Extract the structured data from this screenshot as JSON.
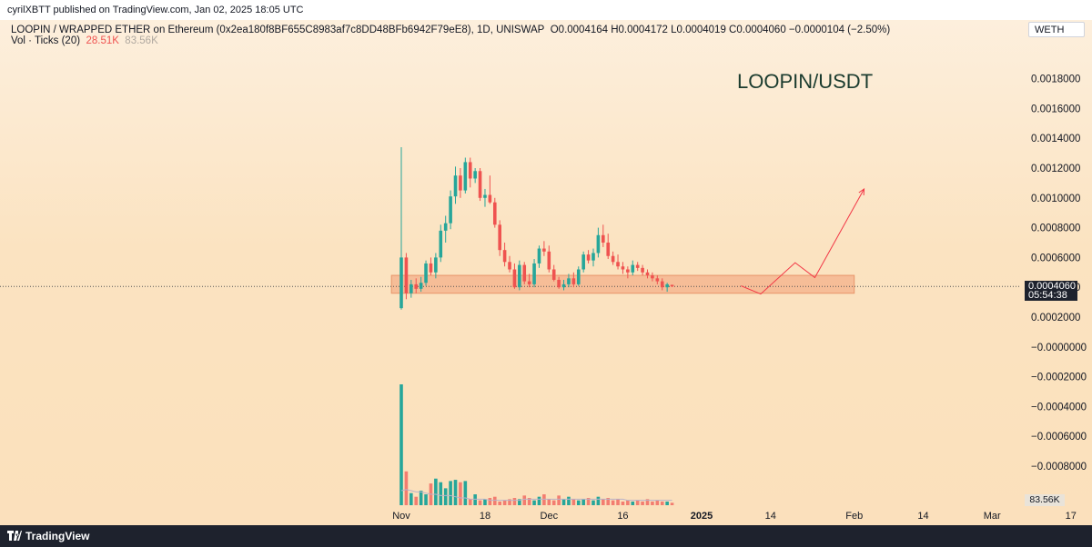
{
  "header": {
    "publisher": "cyrilXBTT published on TradingView.com, Jan 02, 2025 18:05 UTC",
    "symbol_line": "LOOPIN / WRAPPED ETHER on Ethereum (0x2ea180f8BF655C8983af7c8DD48BFb6942F79eE8), 1D, UNISWAP",
    "ohlc": "O0.0004164  H0.0004172  L0.0004019  C0.0004060  −0.0000104 (−2.50%)",
    "vol_label": "Vol · Ticks (20)",
    "vol_value": "28.51K",
    "vol_ma": "83.56K",
    "currency_box": "WETH"
  },
  "last_price": {
    "price": "0.0004060",
    "countdown": "05:54:38"
  },
  "vol_tag": "83.56K",
  "footer": {
    "brand": "TradingView"
  },
  "colors": {
    "up": "#26a69a",
    "down": "#ef5350",
    "zone": "#f4b08a",
    "arrow": "#f23645"
  },
  "chart_data": {
    "type": "candlestick",
    "title": "LOOPIN/USDT",
    "y_ticks": [
      "0.0018000",
      "0.0016000",
      "0.0014000",
      "0.0012000",
      "0.0010000",
      "0.0008000",
      "0.0006000",
      "0.0004000",
      "0.0002000",
      "−0.0000000",
      "−0.0002000",
      "−0.0004000",
      "−0.0006000",
      "−0.0008000"
    ],
    "y_tick_values": [
      0.0018,
      0.0016,
      0.0014,
      0.0012,
      0.001,
      0.0008,
      0.0006,
      0.0004,
      0.0002,
      0.0,
      -0.0002,
      -0.0004,
      -0.0006,
      -0.0008
    ],
    "ylim": [
      -0.00091,
      0.00195
    ],
    "x_labels": [
      "Nov",
      "18",
      "Dec",
      "16",
      "2025",
      "14",
      "Feb",
      "14",
      "Mar",
      "17"
    ],
    "x_label_days": [
      0,
      17,
      30,
      45,
      61,
      75,
      92,
      106,
      120,
      136
    ],
    "last_price": 0.000406,
    "support_zone": {
      "low": 0.00036,
      "high": 0.00048,
      "start_day": -2,
      "end_day": 92
    },
    "projection": [
      [
        69,
        0.00041
      ],
      [
        73,
        0.000355
      ],
      [
        80,
        0.000565
      ],
      [
        84,
        0.000465
      ],
      [
        94,
        0.00106
      ]
    ],
    "candles": [
      {
        "d": 0,
        "o": 0.00026,
        "h": 0.00134,
        "l": 0.00025,
        "c": 0.0006
      },
      {
        "d": 1,
        "o": 0.0006,
        "h": 0.00063,
        "l": 0.00032,
        "c": 0.00036
      },
      {
        "d": 2,
        "o": 0.00036,
        "h": 0.00045,
        "l": 0.00033,
        "c": 0.00042
      },
      {
        "d": 3,
        "o": 0.00042,
        "h": 0.00046,
        "l": 0.00036,
        "c": 0.00039
      },
      {
        "d": 4,
        "o": 0.00039,
        "h": 0.00047,
        "l": 0.00037,
        "c": 0.00043
      },
      {
        "d": 5,
        "o": 0.00043,
        "h": 0.00058,
        "l": 0.00041,
        "c": 0.00056
      },
      {
        "d": 6,
        "o": 0.00056,
        "h": 0.0006,
        "l": 0.00048,
        "c": 0.0005
      },
      {
        "d": 7,
        "o": 0.0005,
        "h": 0.00063,
        "l": 0.00046,
        "c": 0.0006
      },
      {
        "d": 8,
        "o": 0.0006,
        "h": 0.00082,
        "l": 0.00057,
        "c": 0.00078
      },
      {
        "d": 9,
        "o": 0.00078,
        "h": 0.00088,
        "l": 0.0007,
        "c": 0.00083
      },
      {
        "d": 10,
        "o": 0.00083,
        "h": 0.00105,
        "l": 0.00079,
        "c": 0.00101
      },
      {
        "d": 11,
        "o": 0.00101,
        "h": 0.00121,
        "l": 0.00096,
        "c": 0.00115
      },
      {
        "d": 12,
        "o": 0.00115,
        "h": 0.0012,
        "l": 0.001,
        "c": 0.00105
      },
      {
        "d": 13,
        "o": 0.00105,
        "h": 0.00127,
        "l": 0.00103,
        "c": 0.00124
      },
      {
        "d": 14,
        "o": 0.00124,
        "h": 0.00127,
        "l": 0.00107,
        "c": 0.00113
      },
      {
        "d": 15,
        "o": 0.00113,
        "h": 0.0012,
        "l": 0.0011,
        "c": 0.00118
      },
      {
        "d": 16,
        "o": 0.00118,
        "h": 0.0012,
        "l": 0.00098,
        "c": 0.001
      },
      {
        "d": 17,
        "o": 0.001,
        "h": 0.00106,
        "l": 0.00094,
        "c": 0.00102
      },
      {
        "d": 18,
        "o": 0.00102,
        "h": 0.00115,
        "l": 0.00096,
        "c": 0.00097
      },
      {
        "d": 19,
        "o": 0.00097,
        "h": 0.001,
        "l": 0.0008,
        "c": 0.00082
      },
      {
        "d": 20,
        "o": 0.00082,
        "h": 0.00085,
        "l": 0.00061,
        "c": 0.00065
      },
      {
        "d": 21,
        "o": 0.00065,
        "h": 0.0007,
        "l": 0.00054,
        "c": 0.00057
      },
      {
        "d": 22,
        "o": 0.00057,
        "h": 0.00061,
        "l": 0.0005,
        "c": 0.00052
      },
      {
        "d": 23,
        "o": 0.00052,
        "h": 0.00056,
        "l": 0.00039,
        "c": 0.0004
      },
      {
        "d": 24,
        "o": 0.0004,
        "h": 0.00058,
        "l": 0.00038,
        "c": 0.00055
      },
      {
        "d": 25,
        "o": 0.00055,
        "h": 0.00057,
        "l": 0.00042,
        "c": 0.00044
      },
      {
        "d": 26,
        "o": 0.00044,
        "h": 0.00049,
        "l": 0.0004,
        "c": 0.00042
      },
      {
        "d": 27,
        "o": 0.00042,
        "h": 0.00059,
        "l": 0.0004,
        "c": 0.00056
      },
      {
        "d": 28,
        "o": 0.00056,
        "h": 0.00068,
        "l": 0.00053,
        "c": 0.00066
      },
      {
        "d": 29,
        "o": 0.00066,
        "h": 0.00071,
        "l": 0.00061,
        "c": 0.00064
      },
      {
        "d": 30,
        "o": 0.00064,
        "h": 0.00068,
        "l": 0.0005,
        "c": 0.00052
      },
      {
        "d": 31,
        "o": 0.00052,
        "h": 0.00055,
        "l": 0.00044,
        "c": 0.00045
      },
      {
        "d": 32,
        "o": 0.00045,
        "h": 0.00047,
        "l": 0.00039,
        "c": 0.0004
      },
      {
        "d": 33,
        "o": 0.0004,
        "h": 0.00045,
        "l": 0.00038,
        "c": 0.00042
      },
      {
        "d": 34,
        "o": 0.00042,
        "h": 0.00049,
        "l": 0.0004,
        "c": 0.00046
      },
      {
        "d": 35,
        "o": 0.00046,
        "h": 0.0005,
        "l": 0.0004,
        "c": 0.00042
      },
      {
        "d": 36,
        "o": 0.00042,
        "h": 0.00054,
        "l": 0.00041,
        "c": 0.00052
      },
      {
        "d": 37,
        "o": 0.00052,
        "h": 0.00064,
        "l": 0.0005,
        "c": 0.00062
      },
      {
        "d": 38,
        "o": 0.00062,
        "h": 0.00065,
        "l": 0.00056,
        "c": 0.00058
      },
      {
        "d": 39,
        "o": 0.00058,
        "h": 0.00066,
        "l": 0.00054,
        "c": 0.00063
      },
      {
        "d": 40,
        "o": 0.00063,
        "h": 0.0008,
        "l": 0.0006,
        "c": 0.00075
      },
      {
        "d": 41,
        "o": 0.00075,
        "h": 0.00082,
        "l": 0.00067,
        "c": 0.0007
      },
      {
        "d": 42,
        "o": 0.0007,
        "h": 0.00076,
        "l": 0.00059,
        "c": 0.00061
      },
      {
        "d": 43,
        "o": 0.00061,
        "h": 0.00064,
        "l": 0.00055,
        "c": 0.00057
      },
      {
        "d": 44,
        "o": 0.00057,
        "h": 0.00062,
        "l": 0.00052,
        "c": 0.00054
      },
      {
        "d": 45,
        "o": 0.00054,
        "h": 0.00057,
        "l": 0.00049,
        "c": 0.00052
      },
      {
        "d": 46,
        "o": 0.00052,
        "h": 0.00054,
        "l": 0.00046,
        "c": 0.0005
      },
      {
        "d": 47,
        "o": 0.0005,
        "h": 0.00058,
        "l": 0.00048,
        "c": 0.00055
      },
      {
        "d": 48,
        "o": 0.00055,
        "h": 0.00057,
        "l": 0.00051,
        "c": 0.00053
      },
      {
        "d": 49,
        "o": 0.00053,
        "h": 0.00055,
        "l": 0.00048,
        "c": 0.0005
      },
      {
        "d": 50,
        "o": 0.0005,
        "h": 0.00052,
        "l": 0.00046,
        "c": 0.00048
      },
      {
        "d": 51,
        "o": 0.00048,
        "h": 0.0005,
        "l": 0.00044,
        "c": 0.00046
      },
      {
        "d": 52,
        "o": 0.00046,
        "h": 0.00048,
        "l": 0.00042,
        "c": 0.00044
      },
      {
        "d": 53,
        "o": 0.00044,
        "h": 0.00046,
        "l": 0.00038,
        "c": 0.0004
      },
      {
        "d": 54,
        "o": 0.0004,
        "h": 0.00043,
        "l": 0.00037,
        "c": 0.00042
      },
      {
        "d": 55,
        "o": 0.0004164,
        "h": 0.0004172,
        "l": 0.0004019,
        "c": 0.000406
      }
    ],
    "volume": {
      "ylim": [
        0,
        1.0
      ],
      "values": [
        1.0,
        0.28,
        0.1,
        0.07,
        0.12,
        0.09,
        0.18,
        0.22,
        0.19,
        0.14,
        0.2,
        0.21,
        0.19,
        0.2,
        0.05,
        0.09,
        0.04,
        0.05,
        0.06,
        0.07,
        0.03,
        0.04,
        0.05,
        0.06,
        0.05,
        0.08,
        0.06,
        0.04,
        0.07,
        0.09,
        0.05,
        0.04,
        0.08,
        0.05,
        0.07,
        0.05,
        0.04,
        0.05,
        0.06,
        0.04,
        0.07,
        0.05,
        0.06,
        0.04,
        0.05,
        0.03,
        0.04,
        0.03,
        0.04,
        0.03,
        0.05,
        0.03,
        0.04,
        0.03,
        0.03,
        0.02
      ],
      "ma": [
        0.12,
        0.13,
        0.12,
        0.11,
        0.11,
        0.1,
        0.09,
        0.09,
        0.08,
        0.08,
        0.08,
        0.07,
        0.06,
        0.06,
        0.05,
        0.05,
        0.05,
        0.05,
        0.04,
        0.04,
        0.04,
        0.04,
        0.04,
        0.04,
        0.04,
        0.05,
        0.05,
        0.05,
        0.05,
        0.05,
        0.05,
        0.05,
        0.05,
        0.05,
        0.05,
        0.05,
        0.05,
        0.05,
        0.05,
        0.05,
        0.05,
        0.05,
        0.05,
        0.05,
        0.05,
        0.05,
        0.04,
        0.04,
        0.04,
        0.04,
        0.04,
        0.04,
        0.04,
        0.04,
        0.04,
        0.04
      ]
    }
  }
}
